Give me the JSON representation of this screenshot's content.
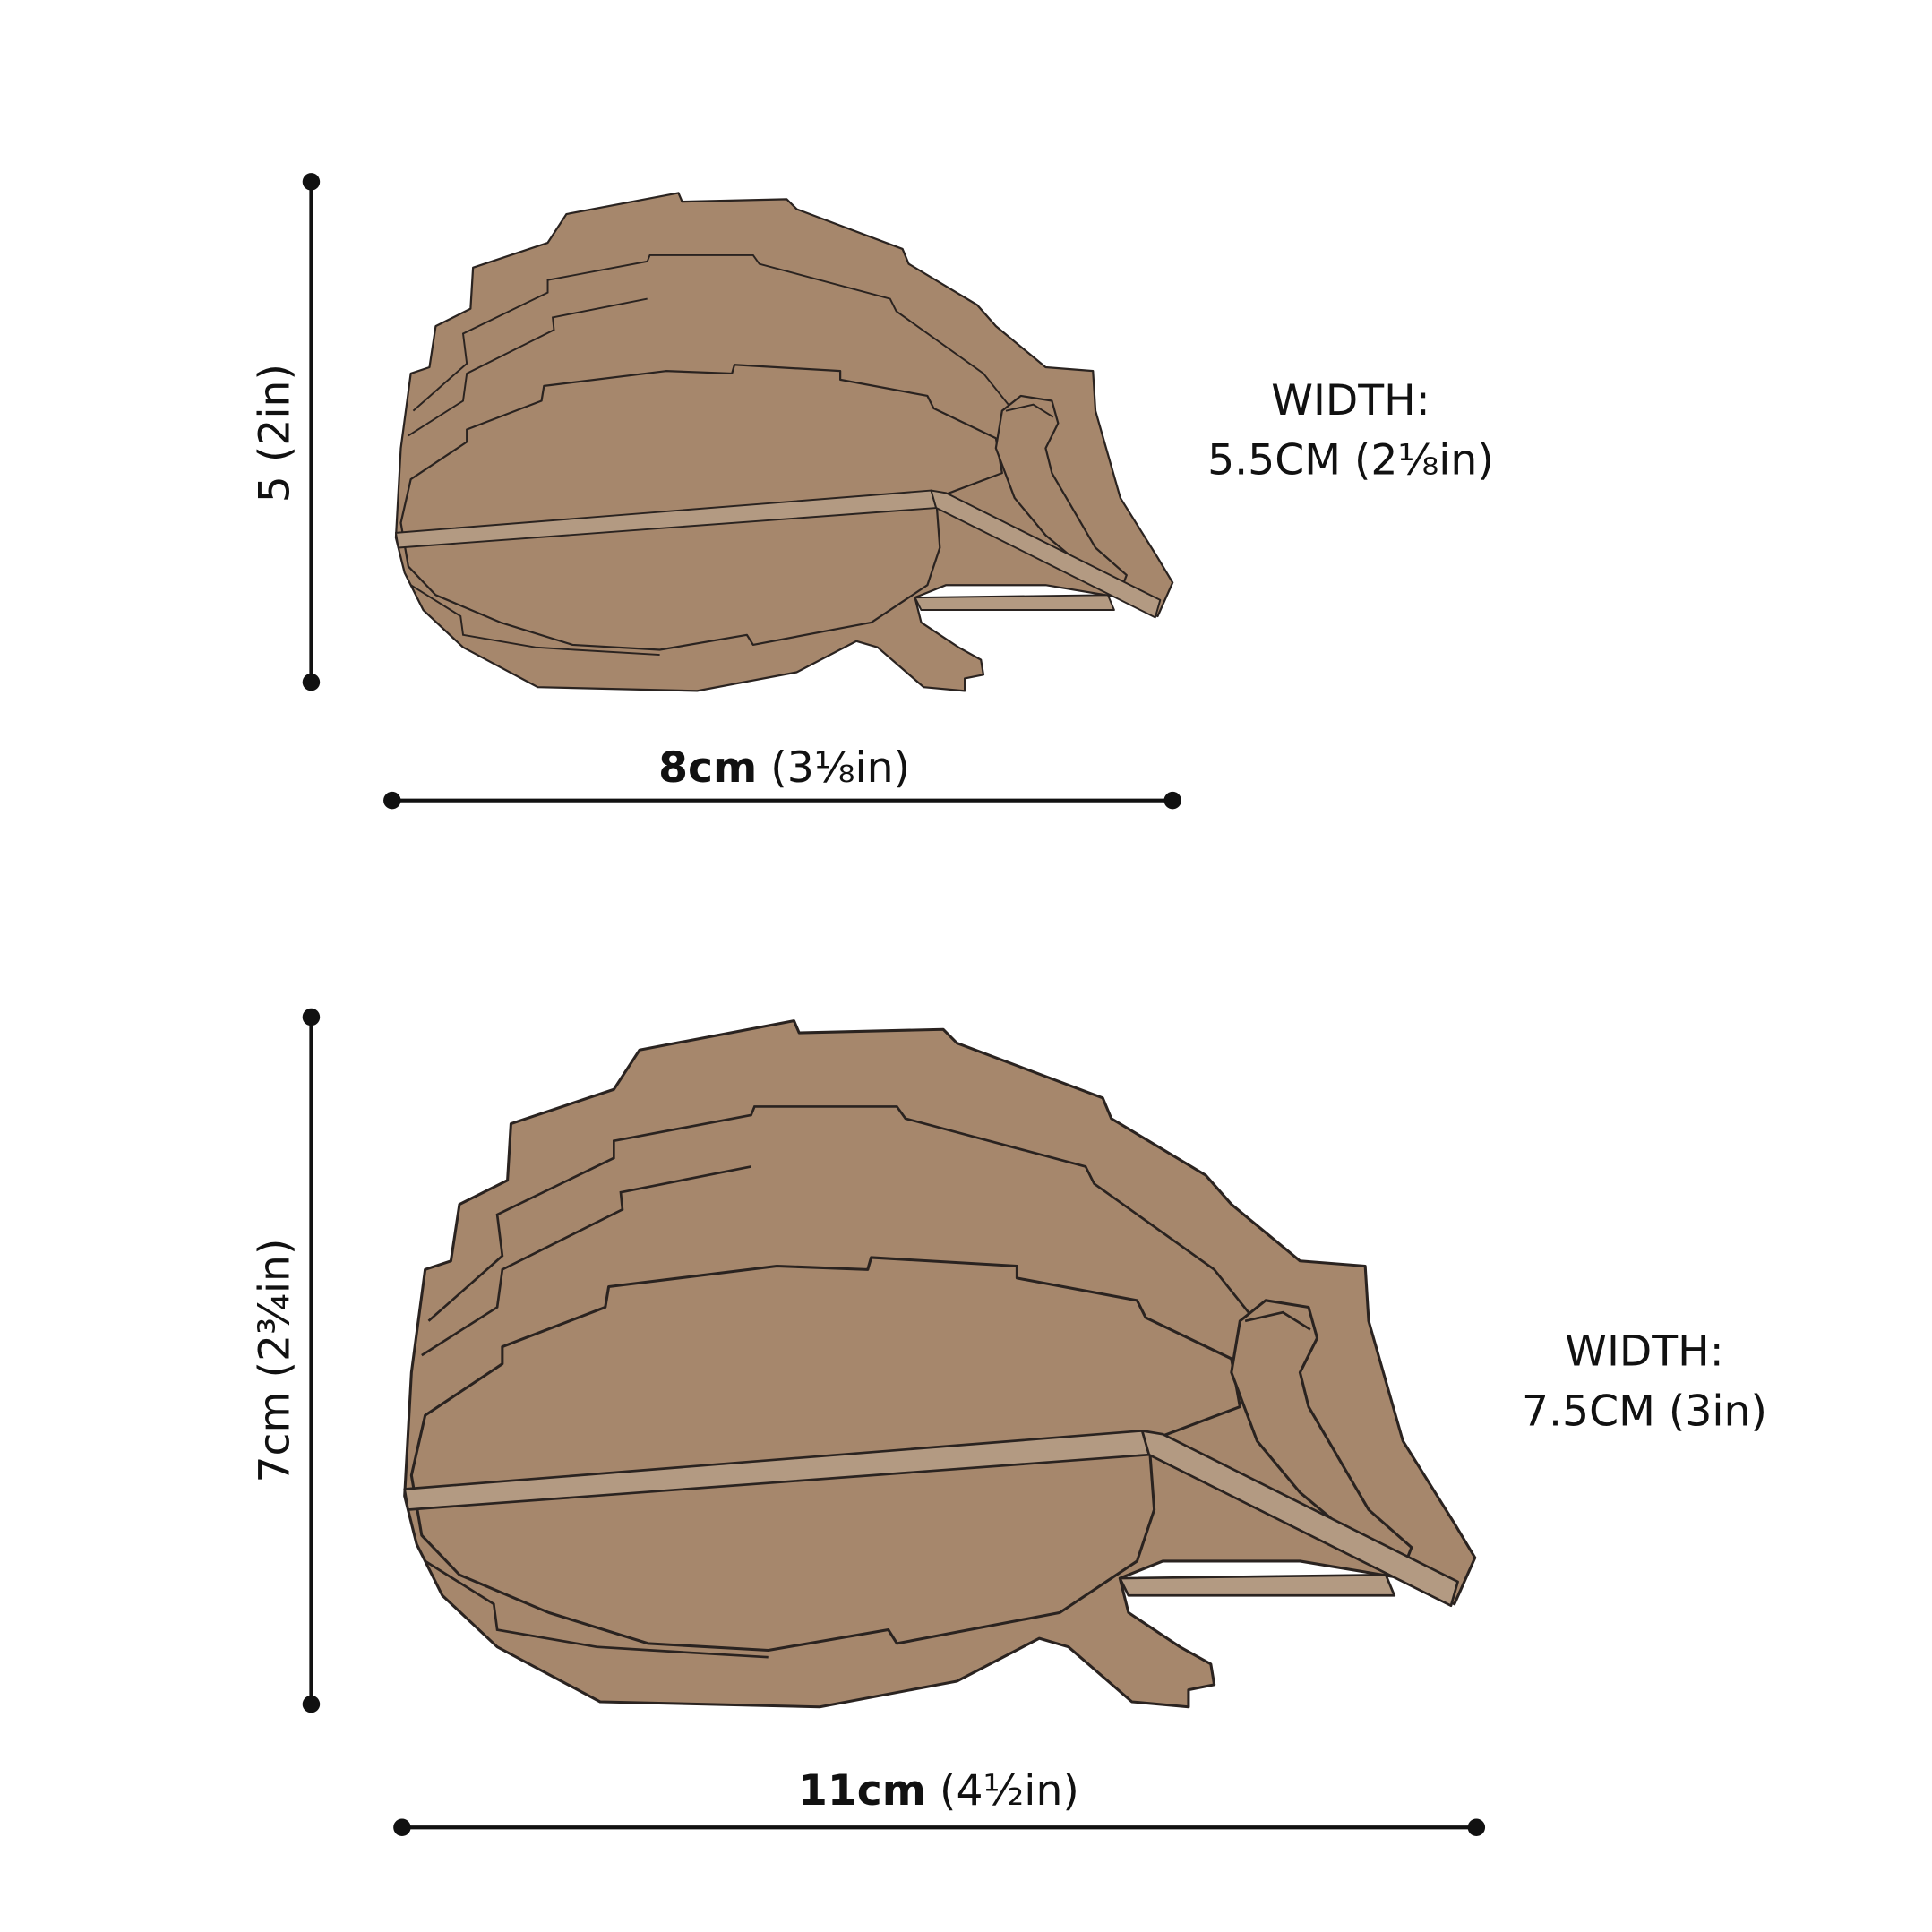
{
  "small": {
    "height_label": "5  (2in)",
    "length_bold": "8cm",
    "length_rest": " (3⅛in)",
    "width_title": "WIDTH:",
    "width_value": "5.5CM  (2⅛in)"
  },
  "large": {
    "height_label": "7cm  (2¾in)",
    "length_bold": "11cm",
    "length_rest": " (4½in)",
    "width_title": "WIDTH:",
    "width_value": "7.5CM  (3in)"
  },
  "colors": {
    "body": "#a6876c",
    "slat": "#b39a82",
    "outline": "#2a2320",
    "dimension": "#111111"
  }
}
